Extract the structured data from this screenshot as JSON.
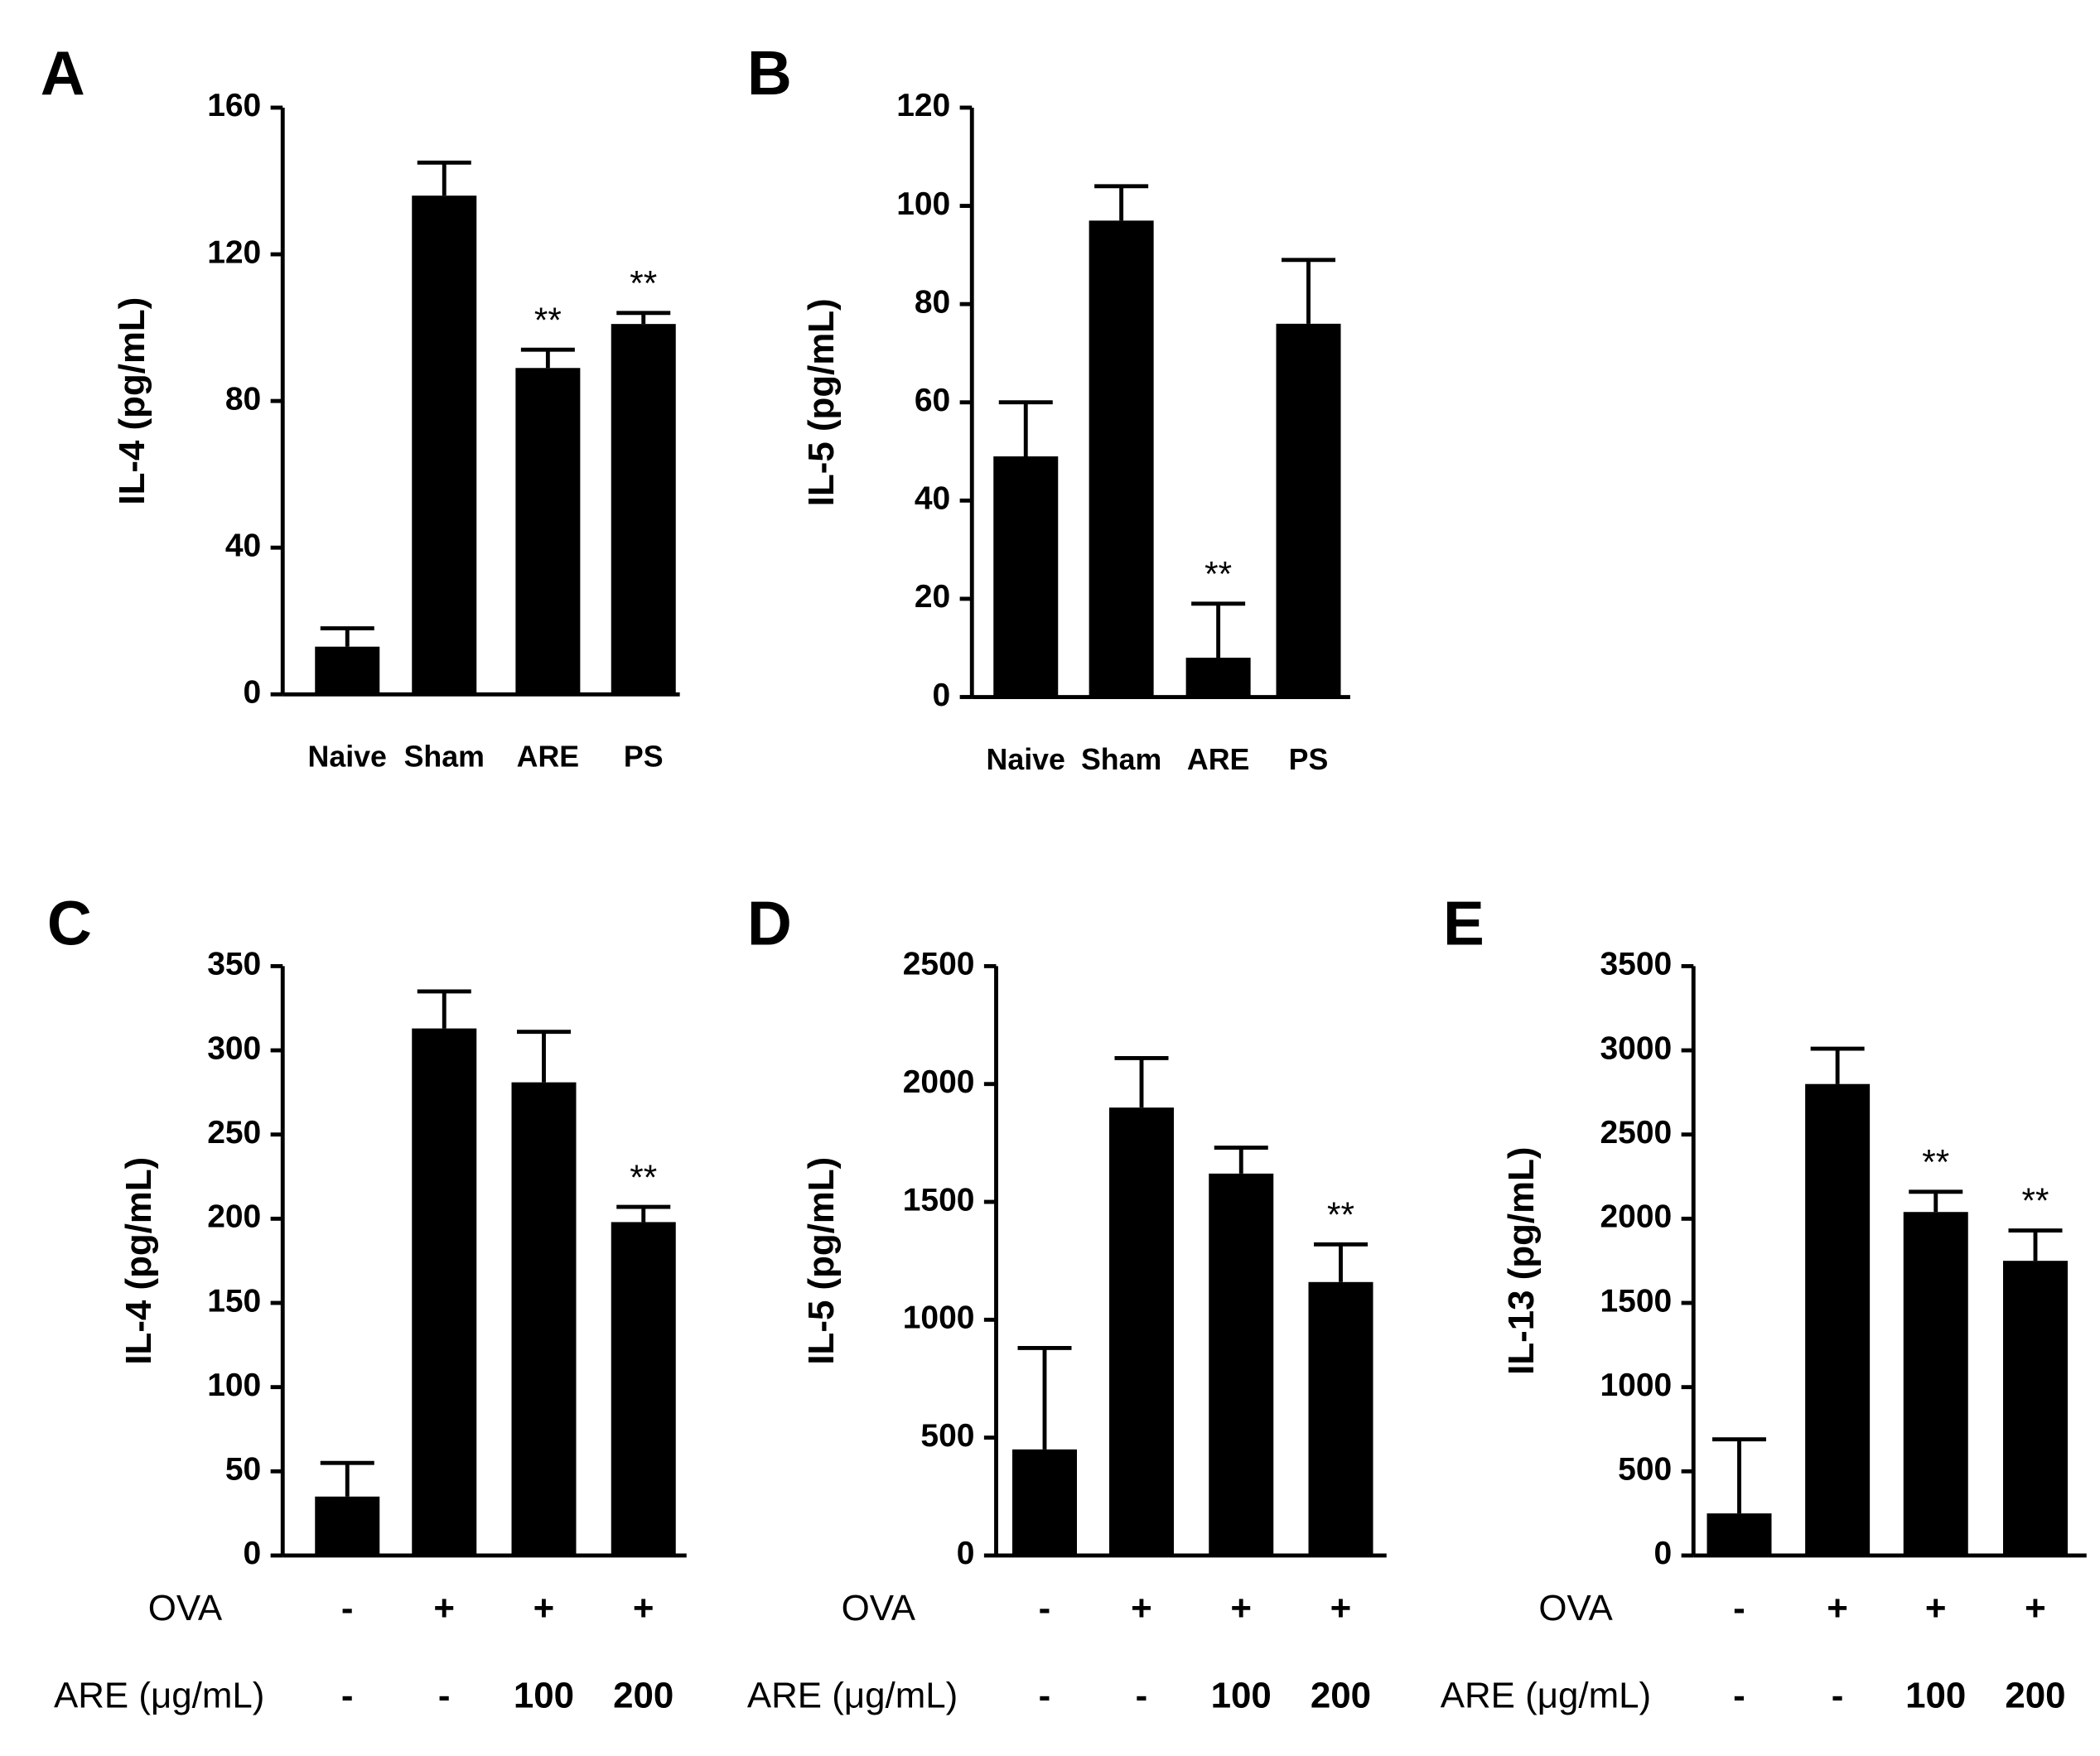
{
  "chart_data": [
    {
      "type": "bar",
      "panel": "A",
      "y_label": "IL-4 (pg/mL)",
      "categories": [
        "Naive",
        "Sham",
        "ARE",
        "PS"
      ],
      "values": [
        13,
        136,
        89,
        101
      ],
      "errors": [
        5,
        9,
        5,
        3
      ],
      "annotations": [
        null,
        null,
        "**",
        "**"
      ],
      "color": "#000000",
      "ylim": [
        0,
        160
      ],
      "yticks": [
        0,
        40,
        80,
        120,
        160
      ]
    },
    {
      "type": "bar",
      "panel": "B",
      "y_label": "IL-5 (pg/mL)",
      "categories": [
        "Naive",
        "Sham",
        "ARE",
        "PS"
      ],
      "values": [
        49,
        97,
        8,
        76
      ],
      "errors": [
        11,
        7,
        11,
        13
      ],
      "annotations": [
        null,
        null,
        "**",
        null
      ],
      "color": "#000000",
      "ylim": [
        0,
        120
      ],
      "yticks": [
        0,
        20,
        40,
        60,
        80,
        100,
        120
      ]
    },
    {
      "type": "bar",
      "panel": "C",
      "y_label": "IL-4 (pg/mL)",
      "category_rows": [
        {
          "name": "OVA",
          "labels": [
            "-",
            "+",
            "+",
            "+"
          ]
        },
        {
          "name": "ARE (μg/mL)",
          "labels": [
            "-",
            "-",
            "100",
            "200"
          ]
        }
      ],
      "values": [
        35,
        313,
        281,
        198
      ],
      "errors": [
        20,
        22,
        30,
        9
      ],
      "annotations": [
        null,
        null,
        null,
        "**"
      ],
      "color": "#000000",
      "ylim": [
        0,
        350
      ],
      "yticks": [
        0,
        50,
        100,
        150,
        200,
        250,
        300,
        350
      ]
    },
    {
      "type": "bar",
      "panel": "D",
      "y_label": "IL-5 (pg/mL)",
      "category_rows": [
        {
          "name": "OVA",
          "labels": [
            "-",
            "+",
            "+",
            "+"
          ]
        },
        {
          "name": "ARE (μg/mL)",
          "labels": [
            "-",
            "-",
            "100",
            "200"
          ]
        }
      ],
      "values": [
        450,
        1900,
        1620,
        1160
      ],
      "errors": [
        430,
        210,
        110,
        160
      ],
      "annotations": [
        null,
        null,
        null,
        "**"
      ],
      "color": "#000000",
      "ylim": [
        0,
        2500
      ],
      "yticks": [
        0,
        500,
        1000,
        1500,
        2000,
        2500
      ]
    },
    {
      "type": "bar",
      "panel": "E",
      "y_label": "IL-13 (pg/mL)",
      "category_rows": [
        {
          "name": "OVA",
          "labels": [
            "-",
            "+",
            "+",
            "+"
          ]
        },
        {
          "name": "ARE (μg/mL)",
          "labels": [
            "-",
            "-",
            "100",
            "200"
          ]
        }
      ],
      "values": [
        250,
        2800,
        2040,
        1750
      ],
      "errors": [
        440,
        210,
        120,
        180
      ],
      "annotations": [
        null,
        null,
        "**",
        "**"
      ],
      "color": "#000000",
      "ylim": [
        0,
        3500
      ],
      "yticks": [
        0,
        500,
        1000,
        1500,
        2000,
        2500,
        3000,
        3500
      ]
    }
  ]
}
